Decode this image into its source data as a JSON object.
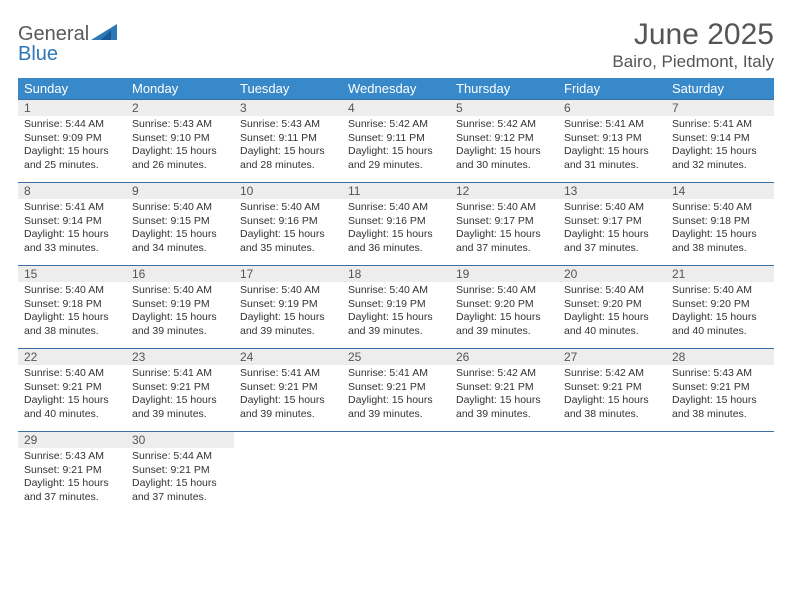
{
  "logo": {
    "text_general": "General",
    "text_blue": "Blue",
    "triangle_color": "#2e77b8"
  },
  "title": "June 2025",
  "location": "Bairo, Piedmont, Italy",
  "colors": {
    "header_bg": "#3789ca",
    "header_text": "#ffffff",
    "daynum_bg": "#ededed",
    "daynum_text": "#555555",
    "body_text": "#333333",
    "divider": "#3a6ea5"
  },
  "day_headers": [
    "Sunday",
    "Monday",
    "Tuesday",
    "Wednesday",
    "Thursday",
    "Friday",
    "Saturday"
  ],
  "weeks": [
    [
      {
        "n": "1",
        "sr": "Sunrise: 5:44 AM",
        "ss": "Sunset: 9:09 PM",
        "d1": "Daylight: 15 hours",
        "d2": "and 25 minutes."
      },
      {
        "n": "2",
        "sr": "Sunrise: 5:43 AM",
        "ss": "Sunset: 9:10 PM",
        "d1": "Daylight: 15 hours",
        "d2": "and 26 minutes."
      },
      {
        "n": "3",
        "sr": "Sunrise: 5:43 AM",
        "ss": "Sunset: 9:11 PM",
        "d1": "Daylight: 15 hours",
        "d2": "and 28 minutes."
      },
      {
        "n": "4",
        "sr": "Sunrise: 5:42 AM",
        "ss": "Sunset: 9:11 PM",
        "d1": "Daylight: 15 hours",
        "d2": "and 29 minutes."
      },
      {
        "n": "5",
        "sr": "Sunrise: 5:42 AM",
        "ss": "Sunset: 9:12 PM",
        "d1": "Daylight: 15 hours",
        "d2": "and 30 minutes."
      },
      {
        "n": "6",
        "sr": "Sunrise: 5:41 AM",
        "ss": "Sunset: 9:13 PM",
        "d1": "Daylight: 15 hours",
        "d2": "and 31 minutes."
      },
      {
        "n": "7",
        "sr": "Sunrise: 5:41 AM",
        "ss": "Sunset: 9:14 PM",
        "d1": "Daylight: 15 hours",
        "d2": "and 32 minutes."
      }
    ],
    [
      {
        "n": "8",
        "sr": "Sunrise: 5:41 AM",
        "ss": "Sunset: 9:14 PM",
        "d1": "Daylight: 15 hours",
        "d2": "and 33 minutes."
      },
      {
        "n": "9",
        "sr": "Sunrise: 5:40 AM",
        "ss": "Sunset: 9:15 PM",
        "d1": "Daylight: 15 hours",
        "d2": "and 34 minutes."
      },
      {
        "n": "10",
        "sr": "Sunrise: 5:40 AM",
        "ss": "Sunset: 9:16 PM",
        "d1": "Daylight: 15 hours",
        "d2": "and 35 minutes."
      },
      {
        "n": "11",
        "sr": "Sunrise: 5:40 AM",
        "ss": "Sunset: 9:16 PM",
        "d1": "Daylight: 15 hours",
        "d2": "and 36 minutes."
      },
      {
        "n": "12",
        "sr": "Sunrise: 5:40 AM",
        "ss": "Sunset: 9:17 PM",
        "d1": "Daylight: 15 hours",
        "d2": "and 37 minutes."
      },
      {
        "n": "13",
        "sr": "Sunrise: 5:40 AM",
        "ss": "Sunset: 9:17 PM",
        "d1": "Daylight: 15 hours",
        "d2": "and 37 minutes."
      },
      {
        "n": "14",
        "sr": "Sunrise: 5:40 AM",
        "ss": "Sunset: 9:18 PM",
        "d1": "Daylight: 15 hours",
        "d2": "and 38 minutes."
      }
    ],
    [
      {
        "n": "15",
        "sr": "Sunrise: 5:40 AM",
        "ss": "Sunset: 9:18 PM",
        "d1": "Daylight: 15 hours",
        "d2": "and 38 minutes."
      },
      {
        "n": "16",
        "sr": "Sunrise: 5:40 AM",
        "ss": "Sunset: 9:19 PM",
        "d1": "Daylight: 15 hours",
        "d2": "and 39 minutes."
      },
      {
        "n": "17",
        "sr": "Sunrise: 5:40 AM",
        "ss": "Sunset: 9:19 PM",
        "d1": "Daylight: 15 hours",
        "d2": "and 39 minutes."
      },
      {
        "n": "18",
        "sr": "Sunrise: 5:40 AM",
        "ss": "Sunset: 9:19 PM",
        "d1": "Daylight: 15 hours",
        "d2": "and 39 minutes."
      },
      {
        "n": "19",
        "sr": "Sunrise: 5:40 AM",
        "ss": "Sunset: 9:20 PM",
        "d1": "Daylight: 15 hours",
        "d2": "and 39 minutes."
      },
      {
        "n": "20",
        "sr": "Sunrise: 5:40 AM",
        "ss": "Sunset: 9:20 PM",
        "d1": "Daylight: 15 hours",
        "d2": "and 40 minutes."
      },
      {
        "n": "21",
        "sr": "Sunrise: 5:40 AM",
        "ss": "Sunset: 9:20 PM",
        "d1": "Daylight: 15 hours",
        "d2": "and 40 minutes."
      }
    ],
    [
      {
        "n": "22",
        "sr": "Sunrise: 5:40 AM",
        "ss": "Sunset: 9:21 PM",
        "d1": "Daylight: 15 hours",
        "d2": "and 40 minutes."
      },
      {
        "n": "23",
        "sr": "Sunrise: 5:41 AM",
        "ss": "Sunset: 9:21 PM",
        "d1": "Daylight: 15 hours",
        "d2": "and 39 minutes."
      },
      {
        "n": "24",
        "sr": "Sunrise: 5:41 AM",
        "ss": "Sunset: 9:21 PM",
        "d1": "Daylight: 15 hours",
        "d2": "and 39 minutes."
      },
      {
        "n": "25",
        "sr": "Sunrise: 5:41 AM",
        "ss": "Sunset: 9:21 PM",
        "d1": "Daylight: 15 hours",
        "d2": "and 39 minutes."
      },
      {
        "n": "26",
        "sr": "Sunrise: 5:42 AM",
        "ss": "Sunset: 9:21 PM",
        "d1": "Daylight: 15 hours",
        "d2": "and 39 minutes."
      },
      {
        "n": "27",
        "sr": "Sunrise: 5:42 AM",
        "ss": "Sunset: 9:21 PM",
        "d1": "Daylight: 15 hours",
        "d2": "and 38 minutes."
      },
      {
        "n": "28",
        "sr": "Sunrise: 5:43 AM",
        "ss": "Sunset: 9:21 PM",
        "d1": "Daylight: 15 hours",
        "d2": "and 38 minutes."
      }
    ],
    [
      {
        "n": "29",
        "sr": "Sunrise: 5:43 AM",
        "ss": "Sunset: 9:21 PM",
        "d1": "Daylight: 15 hours",
        "d2": "and 37 minutes."
      },
      {
        "n": "30",
        "sr": "Sunrise: 5:44 AM",
        "ss": "Sunset: 9:21 PM",
        "d1": "Daylight: 15 hours",
        "d2": "and 37 minutes."
      },
      null,
      null,
      null,
      null,
      null
    ]
  ]
}
